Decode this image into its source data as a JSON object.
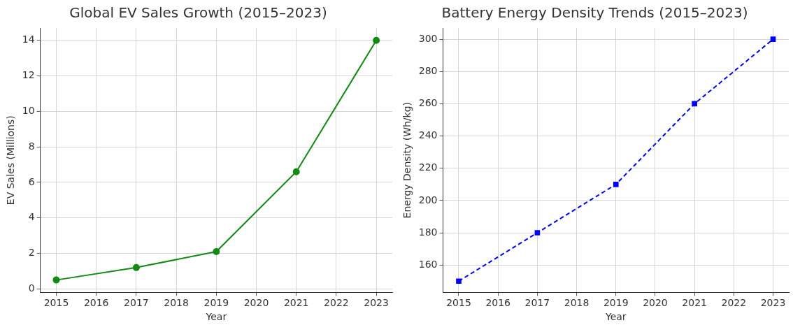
{
  "chart_data": [
    {
      "type": "line",
      "title": "Global EV Sales Growth (2015–2023)",
      "xlabel": "Year",
      "ylabel": "EV Sales (Millions)",
      "x": [
        2015,
        2017,
        2019,
        2021,
        2023
      ],
      "series": [
        {
          "color": "#138a13",
          "values": [
            0.5,
            1.2,
            2.1,
            6.6,
            14
          ]
        }
      ],
      "xlim": [
        2014.6,
        2023.4
      ],
      "xticks": [
        2015,
        2016,
        2017,
        2018,
        2019,
        2020,
        2021,
        2022,
        2023
      ],
      "ylim": [
        -0.2,
        14.7
      ],
      "yticks": [
        0,
        2,
        4,
        6,
        8,
        10,
        12,
        14
      ],
      "grid": true,
      "legend": false,
      "marker": "circle",
      "line_style": "solid"
    },
    {
      "type": "line",
      "title": "Battery Energy Density Trends (2015–2023)",
      "xlabel": "Year",
      "ylabel": "Energy Density (Wh/kg)",
      "x": [
        2015,
        2017,
        2019,
        2021,
        2023
      ],
      "series": [
        {
          "color": "#0000ff",
          "values": [
            150,
            180,
            210,
            260,
            300
          ]
        }
      ],
      "xlim": [
        2014.6,
        2023.4
      ],
      "xticks": [
        2015,
        2016,
        2017,
        2018,
        2019,
        2020,
        2021,
        2022,
        2023
      ],
      "ylim": [
        143,
        307
      ],
      "yticks": [
        160,
        180,
        200,
        220,
        240,
        260,
        280,
        300
      ],
      "grid": true,
      "legend": false,
      "marker": "square",
      "line_style": "dashed"
    }
  ]
}
